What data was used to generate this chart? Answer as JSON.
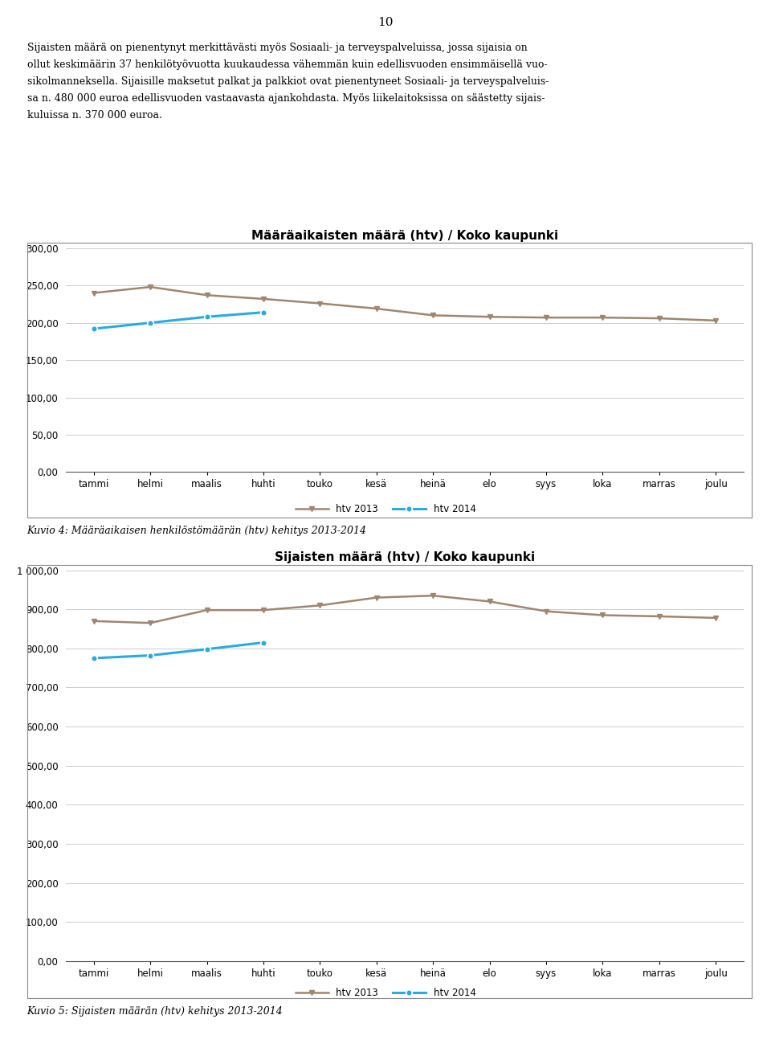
{
  "page_number": "10",
  "body_text_lines": [
    "Sijaisten määrä on pienentynyt merkittävästi myös Sosiaali- ja terveyspalveluissa, jossa sijaisia on",
    "ollut keskimäärin 37 henkilötyövuotta kuukaudessa vähemmän kuin edellisvuoden ensimmäisellä vuo-",
    "sikolmanneksella. Sijaisille maksetut palkat ja palkkiot ovat pienentyneet Sosiaali- ja terveyspalveluis-",
    "sa n. 480 000 euroa edellisvuoden vastaavasta ajankohdasta. Myös liikelaitoksissa on säästetty sijais-",
    "kuluissa n. 370 000 euroa."
  ],
  "chart1": {
    "title": "Määräaikaisten määrä (htv) / Koko kaupunki",
    "months": [
      "tammi",
      "helmi",
      "maalis",
      "huhti",
      "touko",
      "kesä",
      "heinä",
      "elo",
      "syys",
      "loka",
      "marras",
      "joulu"
    ],
    "htv2013": [
      240,
      248,
      237,
      232,
      226,
      219,
      210,
      208,
      207,
      207,
      206,
      203
    ],
    "htv2014": [
      192,
      200,
      208,
      214,
      null,
      null,
      null,
      null,
      null,
      null,
      null,
      null
    ],
    "ylim": [
      0,
      300
    ],
    "yticks": [
      0,
      50,
      100,
      150,
      200,
      250,
      300
    ],
    "color2013": "#9e8670",
    "color2014": "#29abe2",
    "legend2013": "htv 2013",
    "legend2014": "htv 2014",
    "caption": "Kuvio 4: Määräaikaisen henkilöstömäärän (htv) kehitys 2013-2014"
  },
  "chart2": {
    "title": "Sijaisten määrä (htv) / Koko kaupunki",
    "months": [
      "tammi",
      "helmi",
      "maalis",
      "huhti",
      "touko",
      "kesä",
      "heinä",
      "elo",
      "syys",
      "loka",
      "marras",
      "joulu"
    ],
    "htv2013": [
      870,
      865,
      898,
      898,
      910,
      930,
      935,
      920,
      895,
      885,
      882,
      878
    ],
    "htv2014": [
      775,
      782,
      798,
      815,
      null,
      null,
      null,
      null,
      null,
      null,
      null,
      null
    ],
    "ylim": [
      0,
      1000
    ],
    "yticks": [
      0,
      100,
      200,
      300,
      400,
      500,
      600,
      700,
      800,
      900,
      1000
    ],
    "color2013": "#9e8670",
    "color2014": "#29abe2",
    "legend2013": "htv 2013",
    "legend2014": "htv 2014",
    "caption": "Kuvio 5: Sijaisten määrän (htv) kehitys 2013-2014"
  },
  "background_color": "#ffffff",
  "border_color": "#888888",
  "grid_color": "#cccccc"
}
